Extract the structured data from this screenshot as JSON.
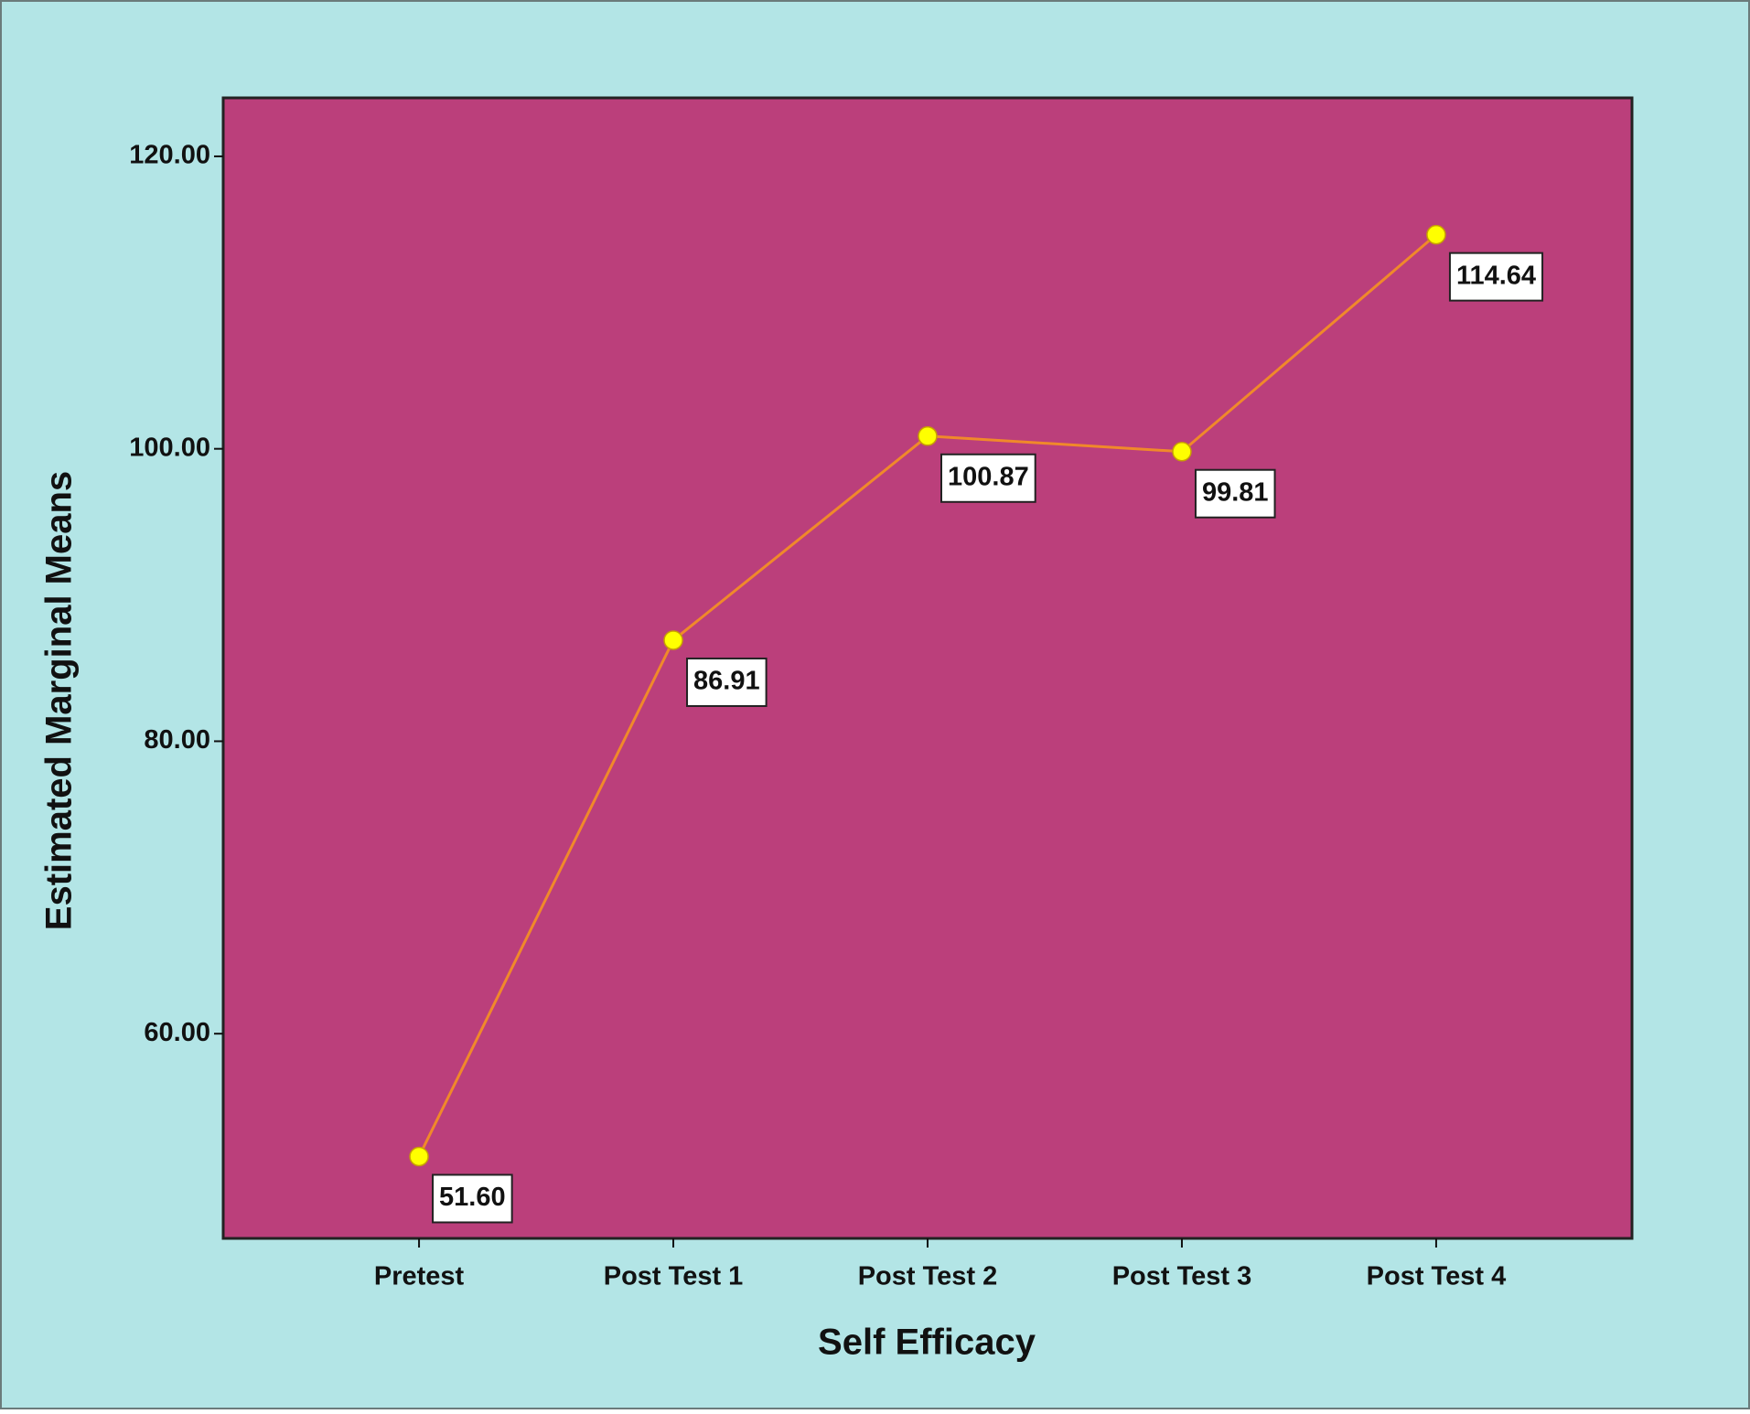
{
  "chart_data": {
    "type": "line",
    "x_label": "Self Efficacy",
    "y_label": "Estimated Marginal Means",
    "categories": [
      "Pretest",
      "Post Test 1",
      "Post Test 2",
      "Post Test 3",
      "Post Test 4"
    ],
    "values": [
      51.6,
      86.91,
      100.87,
      99.81,
      114.64
    ],
    "value_labels": [
      "51.60",
      "86.91",
      "100.87",
      "99.81",
      "114.64"
    ],
    "color": "#f0892a",
    "marker_color": "#ffff00",
    "ylim": [
      46,
      124
    ],
    "yticks": [
      {
        "value": 60,
        "label": "60.00"
      },
      {
        "value": 80,
        "label": "80.00"
      },
      {
        "value": 100,
        "label": "100.00"
      },
      {
        "value": 120,
        "label": "120.00"
      }
    ]
  }
}
